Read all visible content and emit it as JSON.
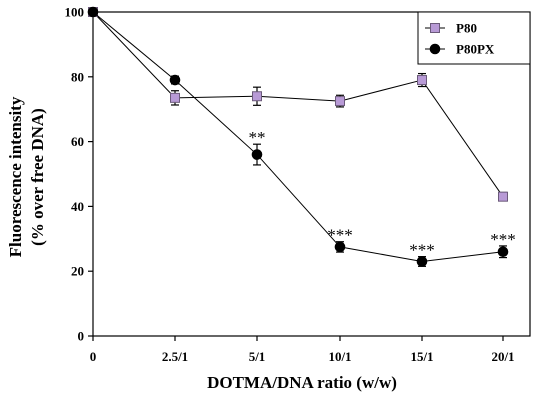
{
  "chart_data": {
    "type": "line",
    "x_categories": [
      "0",
      "2.5/1",
      "5/1",
      "10/1",
      "15/1",
      "20/1"
    ],
    "xlabel": "DOTMA/DNA ratio (w/w)",
    "ylabel_line1": "Fluorescence intensity",
    "ylabel_line2": "(% over free DNA)",
    "ylim": [
      0,
      100
    ],
    "yticks": [
      0,
      20,
      40,
      60,
      80,
      100
    ],
    "legend_position": "top-right",
    "series": [
      {
        "name": "P80",
        "marker": "square",
        "color": "#b89ad6",
        "stroke": "#6b5a7a",
        "values": [
          100,
          73.5,
          74,
          72.5,
          79,
          43
        ],
        "errors": [
          0,
          2.2,
          2.8,
          1.8,
          2.0,
          1.3
        ]
      },
      {
        "name": "P80PX",
        "marker": "circle",
        "color": "#000000",
        "stroke": "#000000",
        "values": [
          100,
          79,
          56,
          27.5,
          23,
          26
        ],
        "errors": [
          0,
          1.2,
          3.2,
          1.6,
          1.5,
          1.8
        ]
      }
    ],
    "annotations": [
      {
        "category": "5/1",
        "text": "**"
      },
      {
        "category": "10/1",
        "text": "***"
      },
      {
        "category": "15/1",
        "text": "***"
      },
      {
        "category": "20/1",
        "text": "***"
      }
    ]
  }
}
